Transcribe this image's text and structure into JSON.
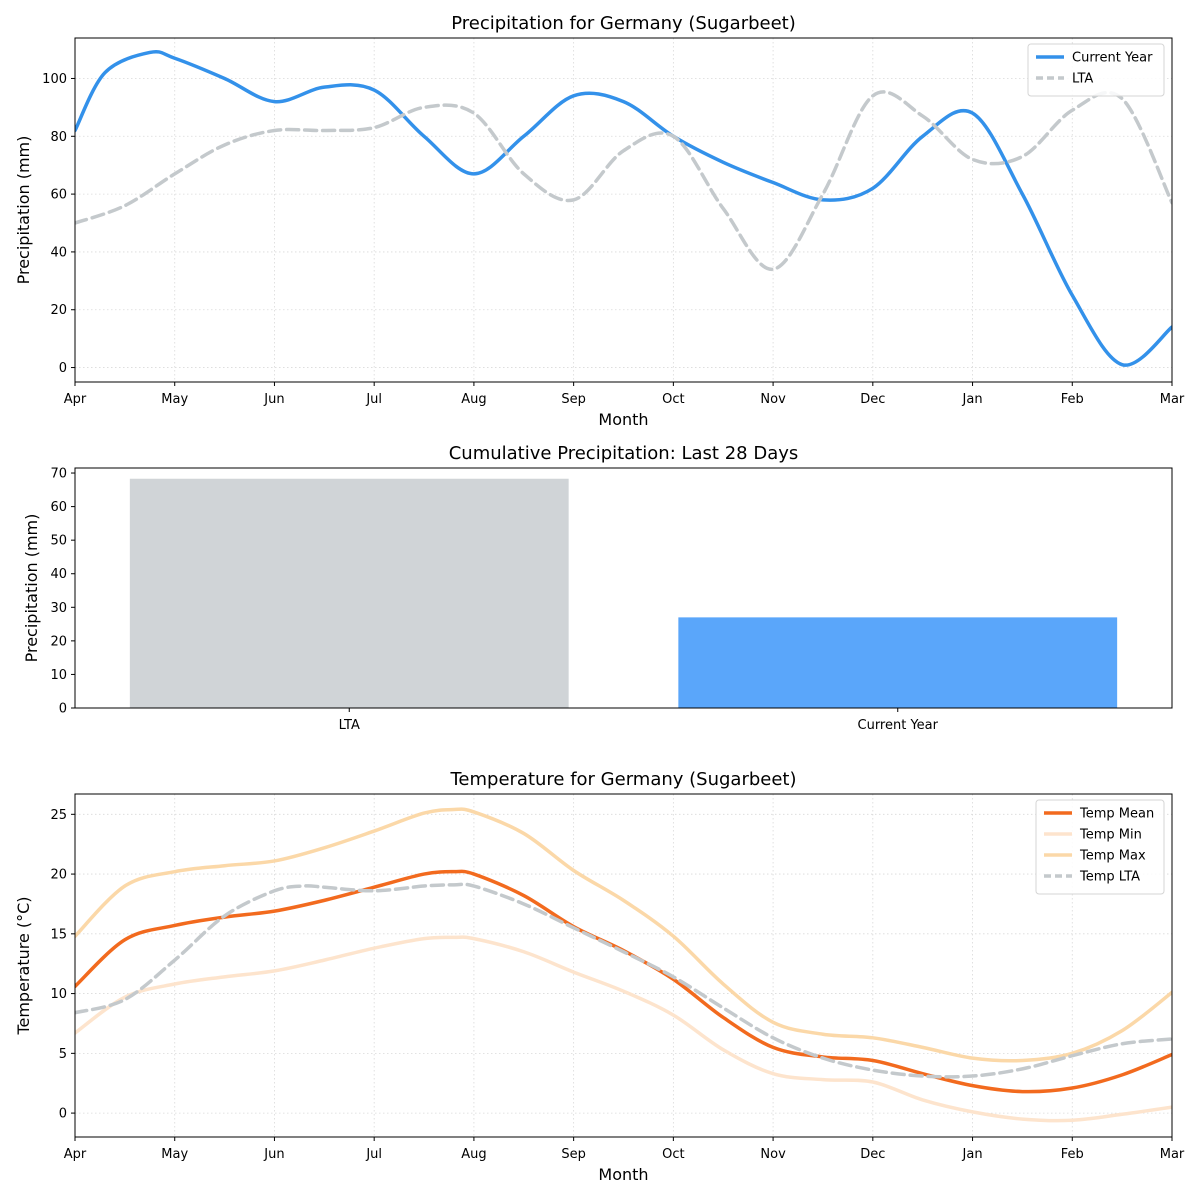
{
  "chart_data": [
    {
      "type": "line",
      "title": "Precipitation for Germany (Sugarbeet)",
      "xlabel": "Month",
      "ylabel": "Precipitation (mm)",
      "categories": [
        "Apr",
        "May",
        "Jun",
        "Jul",
        "Aug",
        "Sep",
        "Oct",
        "Nov",
        "Dec",
        "Jan",
        "Feb",
        "Mar"
      ],
      "ylim": [
        -5,
        114
      ],
      "yticks": [
        0,
        20,
        40,
        60,
        80,
        100
      ],
      "grid": true,
      "legend_position": "top-right",
      "series": [
        {
          "name": "Current Year",
          "color": "#3391ea",
          "style": "solid",
          "x": [
            0,
            0.3,
            0.75,
            1,
            1.5,
            2,
            2.5,
            3,
            3.5,
            4,
            4.5,
            5,
            5.5,
            6,
            6.5,
            7,
            7.5,
            8,
            8.5,
            9,
            9.5,
            10,
            10.5,
            11
          ],
          "y": [
            82,
            102,
            109,
            107,
            100,
            92,
            97,
            96,
            80,
            67,
            80,
            94,
            92,
            80,
            71,
            64,
            58,
            62,
            80,
            88,
            60,
            25,
            1,
            14
          ]
        },
        {
          "name": "LTA",
          "color": "#c4c9cc",
          "style": "dashed",
          "x": [
            0,
            0.5,
            1,
            1.5,
            2,
            2.5,
            3,
            3.5,
            4,
            4.5,
            5,
            5.5,
            6,
            6.5,
            7,
            7.5,
            8,
            8.5,
            9,
            9.5,
            10,
            10.5,
            11
          ],
          "y": [
            50,
            56,
            67,
            77,
            82,
            82,
            83,
            90,
            88,
            67,
            58,
            75,
            80,
            55,
            34,
            60,
            94,
            87,
            72,
            73,
            89,
            93,
            57
          ]
        }
      ]
    },
    {
      "type": "bar",
      "title": "Cumulative Precipitation: Last 28 Days",
      "ylabel": "Precipitation (mm)",
      "categories": [
        "LTA",
        "Current Year"
      ],
      "values": [
        68.3,
        27
      ],
      "colors": [
        "#d0d4d7",
        "#5aa6fa"
      ],
      "ylim": [
        0,
        71.5
      ],
      "yticks": [
        0,
        10,
        20,
        30,
        40,
        50,
        60,
        70
      ]
    },
    {
      "type": "line",
      "title": "Temperature for Germany (Sugarbeet)",
      "xlabel": "Month",
      "ylabel": "Temperature (°C)",
      "categories": [
        "Apr",
        "May",
        "Jun",
        "Jul",
        "Aug",
        "Sep",
        "Oct",
        "Nov",
        "Dec",
        "Jan",
        "Feb",
        "Mar"
      ],
      "ylim": [
        -2,
        26.7
      ],
      "yticks": [
        0,
        5,
        10,
        15,
        20,
        25
      ],
      "grid": true,
      "legend_position": "top-right",
      "series": [
        {
          "name": "Temp Mean",
          "color": "#f26a1e",
          "style": "solid",
          "x": [
            0,
            0.5,
            1,
            1.5,
            2,
            2.5,
            3,
            3.5,
            3.8,
            4,
            4.5,
            5,
            5.5,
            6,
            6.5,
            7,
            7.5,
            8,
            8.5,
            9,
            9.5,
            10,
            10.5,
            11
          ],
          "y": [
            10.6,
            14.5,
            15.7,
            16.4,
            16.9,
            17.8,
            18.9,
            20,
            20.2,
            20,
            18.2,
            15.6,
            13.6,
            11.2,
            8,
            5.5,
            4.7,
            4.4,
            3.3,
            2.3,
            1.8,
            2.1,
            3.2,
            4.9
          ]
        },
        {
          "name": "Temp Min",
          "color": "#fde4cd",
          "style": "solid",
          "x": [
            0,
            0.5,
            1,
            1.5,
            2,
            2.5,
            3,
            3.5,
            3.8,
            4,
            4.5,
            5,
            5.5,
            6,
            6.5,
            7,
            7.5,
            8,
            8.5,
            9,
            9.5,
            10,
            10.5,
            11
          ],
          "y": [
            6.7,
            9.7,
            10.8,
            11.4,
            11.9,
            12.8,
            13.8,
            14.6,
            14.7,
            14.6,
            13.5,
            11.8,
            10.2,
            8.2,
            5.3,
            3.3,
            2.8,
            2.6,
            1.1,
            0.1,
            -0.5,
            -0.6,
            -0.1,
            0.5
          ]
        },
        {
          "name": "Temp Max",
          "color": "#fbd8a8",
          "style": "solid",
          "x": [
            0,
            0.5,
            1,
            1.5,
            2,
            2.5,
            3,
            3.5,
            3.8,
            4,
            4.5,
            5,
            5.5,
            6,
            6.5,
            7,
            7.5,
            8,
            8.5,
            9,
            9.5,
            10,
            10.5,
            11
          ],
          "y": [
            14.8,
            19,
            20.2,
            20.7,
            21.1,
            22.2,
            23.6,
            25.1,
            25.4,
            25.2,
            23.4,
            20.3,
            17.8,
            14.8,
            10.8,
            7.6,
            6.6,
            6.3,
            5.5,
            4.6,
            4.4,
            5,
            6.9,
            10.1
          ]
        },
        {
          "name": "Temp LTA",
          "color": "#c4c9cc",
          "style": "dashed",
          "x": [
            0,
            0.5,
            1,
            1.5,
            2,
            2.3,
            2.5,
            3,
            3.5,
            3.8,
            4,
            4.5,
            5,
            5.5,
            6,
            6.5,
            7,
            7.5,
            8,
            8.5,
            9,
            9.5,
            10,
            10.5,
            11
          ],
          "y": [
            8.4,
            9.5,
            12.8,
            16.5,
            18.6,
            19,
            18.9,
            18.6,
            19,
            19.1,
            19,
            17.5,
            15.5,
            13.5,
            11.4,
            8.8,
            6.3,
            4.6,
            3.6,
            3.1,
            3.1,
            3.7,
            4.8,
            5.8,
            6.2
          ]
        }
      ]
    }
  ]
}
